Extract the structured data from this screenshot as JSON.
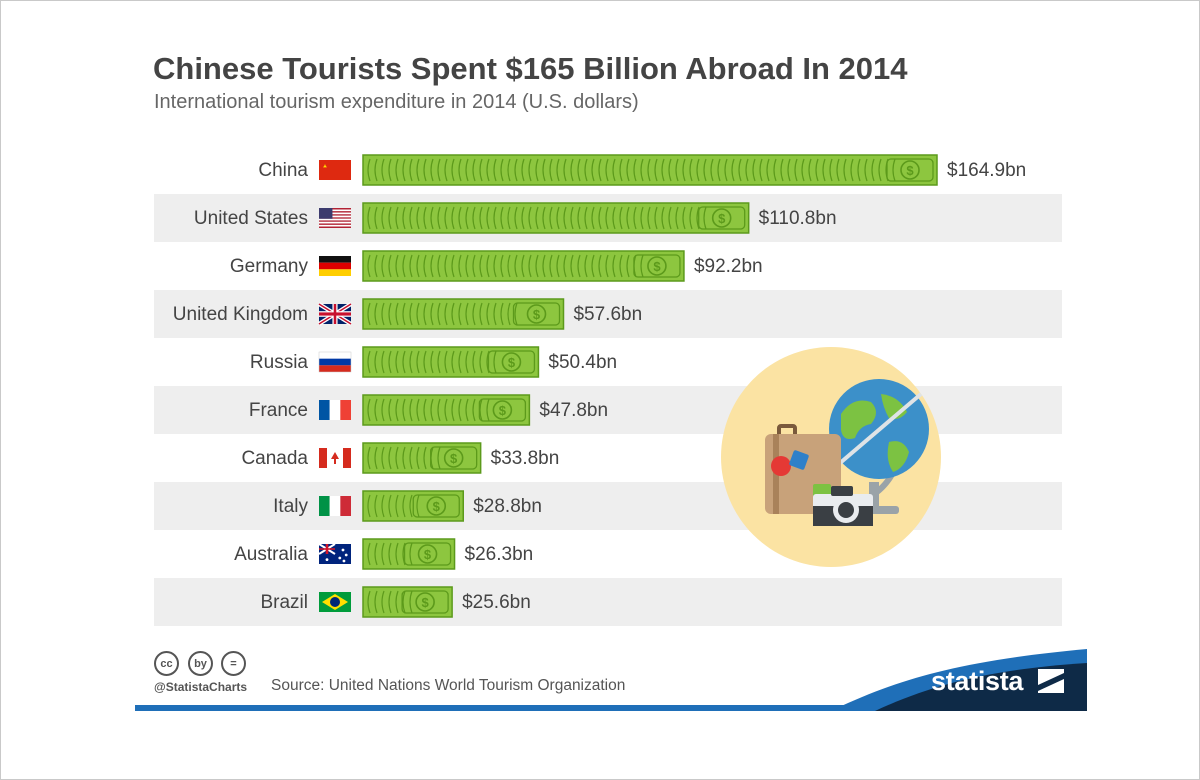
{
  "title": "Chinese Tourists Spent $165 Billion Abroad In 2014",
  "subtitle": "International tourism expenditure in 2014 (U.S. dollars)",
  "footer": {
    "handle": "@StatistaCharts",
    "source": "Source: United Nations World Tourism Organization",
    "brand": "statista",
    "cc_icons": [
      "cc",
      "by",
      "="
    ]
  },
  "colors": {
    "bill_green": "#8dc63f",
    "bill_dark": "#5c9a1b",
    "row_stripe": "#eeeeee",
    "brand_blue": "#1f6fb8",
    "brand_navy": "#0e2a47",
    "illustration_bg": "#fbe3a3"
  },
  "chart_data": {
    "type": "bar",
    "orientation": "horizontal",
    "title": "Chinese Tourists Spent $165 Billion Abroad In 2014",
    "subtitle": "International tourism expenditure in 2014 (U.S. dollars)",
    "categories": [
      "China",
      "United States",
      "Germany",
      "United Kingdom",
      "Russia",
      "France",
      "Canada",
      "Italy",
      "Australia",
      "Brazil"
    ],
    "values": [
      164.9,
      110.8,
      92.2,
      57.6,
      50.4,
      47.8,
      33.8,
      28.8,
      26.3,
      25.6
    ],
    "value_labels": [
      "$164.9bn",
      "$110.8bn",
      "$92.2bn",
      "$57.6bn",
      "$50.4bn",
      "$47.8bn",
      "$33.8bn",
      "$28.8bn",
      "$26.3bn",
      "$25.6bn"
    ],
    "flags": [
      "china-flag-icon",
      "usa-flag-icon",
      "germany-flag-icon",
      "uk-flag-icon",
      "russia-flag-icon",
      "france-flag-icon",
      "canada-flag-icon",
      "italy-flag-icon",
      "australia-flag-icon",
      "brazil-flag-icon"
    ],
    "xlim": [
      0,
      164.9
    ],
    "grid": false,
    "legend": "none",
    "bar_style": "stacked dollar bills",
    "row_striping": "alternate rows shaded"
  }
}
